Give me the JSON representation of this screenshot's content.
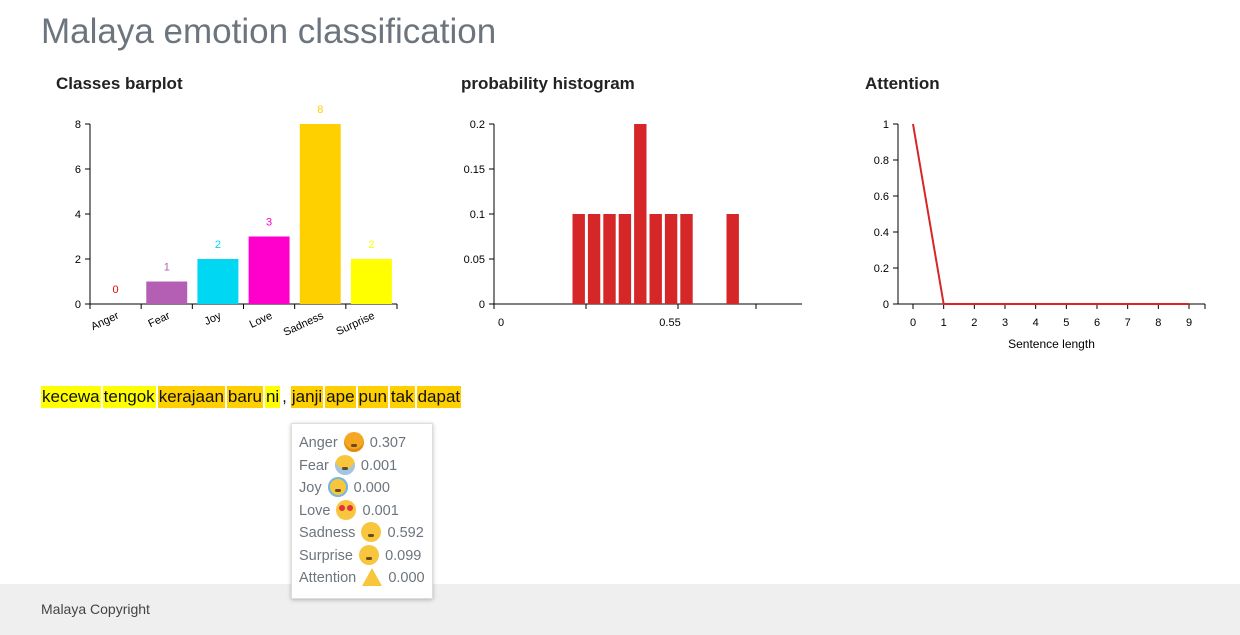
{
  "page": {
    "title": "Malaya emotion classification"
  },
  "chart_data": [
    {
      "type": "bar",
      "title": "Classes barplot",
      "categories": [
        "Anger",
        "Fear",
        "Joy",
        "Love",
        "Sadness",
        "Surprise"
      ],
      "values": [
        0,
        1,
        2,
        3,
        8,
        2
      ],
      "colors": [
        "#e8000b",
        "#b45fb3",
        "#00d7f3",
        "#ff00cc",
        "#ffd000",
        "#ffff00"
      ],
      "yticks": [
        "0",
        "2",
        "4",
        "6",
        "8"
      ],
      "ylim": [
        0,
        8
      ]
    },
    {
      "type": "bar",
      "title": "probability histogram",
      "bin_edges": [
        0.25,
        0.3,
        0.35,
        0.4,
        0.45,
        0.5,
        0.55,
        0.6,
        0.65,
        0.7,
        0.75,
        0.8
      ],
      "values": [
        0.1,
        0.1,
        0.1,
        0.1,
        0.2,
        0.1,
        0.1,
        0.1,
        0,
        0,
        0.1
      ],
      "color": "#d62728",
      "xticks": [
        "0",
        "0.55"
      ],
      "yticks": [
        "0",
        "0.05",
        "0.1",
        "0.15",
        "0.2"
      ],
      "ylim": [
        0,
        0.2
      ]
    },
    {
      "type": "line",
      "title": "Attention",
      "x": [
        0,
        1,
        2,
        3,
        4,
        5,
        6,
        7,
        8,
        9
      ],
      "values": [
        1,
        0,
        0,
        0,
        0,
        0,
        0,
        0,
        0,
        0
      ],
      "color": "#d62728",
      "xticks": [
        "0",
        "1",
        "2",
        "3",
        "4",
        "5",
        "6",
        "7",
        "8",
        "9"
      ],
      "yticks": [
        "0",
        "0.2",
        "0.4",
        "0.6",
        "0.8",
        "1"
      ],
      "xlabel": "Sentence length",
      "ylim": [
        0,
        1
      ]
    }
  ],
  "sentence": {
    "tokens": [
      {
        "text": "kecewa",
        "color": "#ffff00"
      },
      {
        "text": "tengok",
        "color": "#ffff00"
      },
      {
        "text": "kerajaan",
        "color": "#ffd000"
      },
      {
        "text": "baru",
        "color": "#ffd000"
      },
      {
        "text": "ni",
        "color": "#ffff00"
      },
      {
        "text": ",",
        "color": ""
      },
      {
        "text": "janji",
        "color": "#ffd000"
      },
      {
        "text": "ape",
        "color": "#ffd000"
      },
      {
        "text": "pun",
        "color": "#ffd000"
      },
      {
        "text": "tak",
        "color": "#ffd000"
      },
      {
        "text": "dapat",
        "color": "#ffd000"
      }
    ]
  },
  "tooltip": {
    "rows": [
      {
        "label": "Anger",
        "icon": "angry-face-icon",
        "value": "0.307"
      },
      {
        "label": "Fear",
        "icon": "fearful-face-icon",
        "value": "0.001"
      },
      {
        "label": "Joy",
        "icon": "tears-of-joy-face-icon",
        "value": "0.000"
      },
      {
        "label": "Love",
        "icon": "heart-eyes-face-icon",
        "value": "0.001"
      },
      {
        "label": "Sadness",
        "icon": "sad-face-icon",
        "value": "0.592"
      },
      {
        "label": "Surprise",
        "icon": "astonished-face-icon",
        "value": "0.099"
      },
      {
        "label": "Attention",
        "icon": "warning-icon",
        "value": "0.000"
      }
    ]
  },
  "footer": {
    "text": "Malaya Copyright"
  }
}
